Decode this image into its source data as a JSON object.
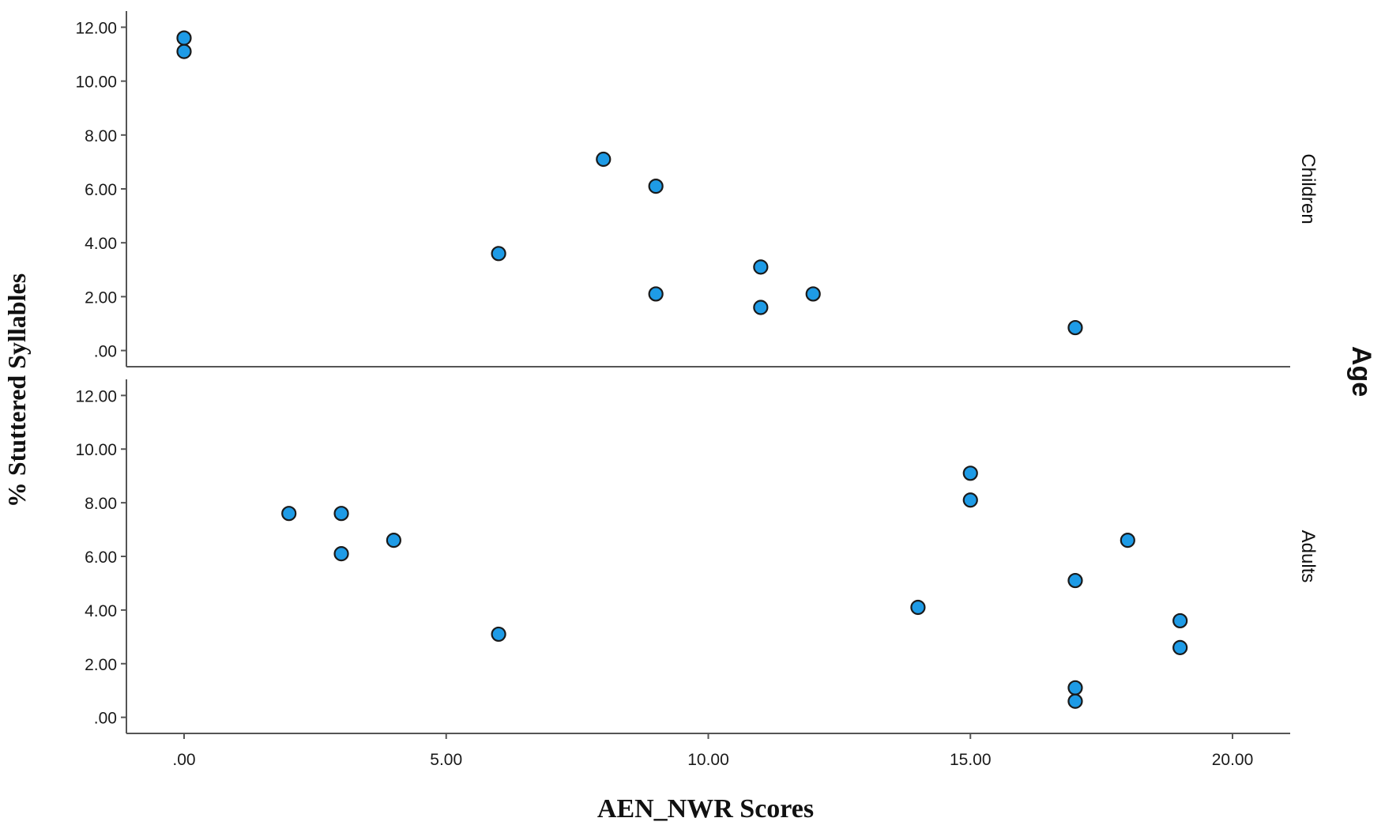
{
  "chart_data": {
    "type": "scatter",
    "xlabel": "AEN_NWR Scores",
    "ylabel": "% Stuttered Syllables",
    "facet_label": "Age",
    "xlim": [
      -1.1,
      21.1
    ],
    "ylim": [
      -0.6,
      12.6
    ],
    "x_ticks": [
      0,
      5,
      10,
      15,
      20
    ],
    "x_tick_labels": [
      ".00",
      "5.00",
      "10.00",
      "15.00",
      "20.00"
    ],
    "y_ticks": [
      0,
      2,
      4,
      6,
      8,
      10,
      12
    ],
    "y_tick_labels": [
      ".00",
      "2.00",
      "4.00",
      "6.00",
      "8.00",
      "10.00",
      "12.00"
    ],
    "panels": [
      {
        "name": "Children",
        "points": [
          {
            "x": 0,
            "y": 11.6
          },
          {
            "x": 0,
            "y": 11.1
          },
          {
            "x": 6,
            "y": 3.6
          },
          {
            "x": 8,
            "y": 7.1
          },
          {
            "x": 9,
            "y": 6.1
          },
          {
            "x": 9,
            "y": 2.1
          },
          {
            "x": 11,
            "y": 3.1
          },
          {
            "x": 11,
            "y": 1.6
          },
          {
            "x": 12,
            "y": 2.1
          },
          {
            "x": 17,
            "y": 0.85
          }
        ]
      },
      {
        "name": "Adults",
        "points": [
          {
            "x": 2,
            "y": 7.6
          },
          {
            "x": 3,
            "y": 7.6
          },
          {
            "x": 3,
            "y": 6.1
          },
          {
            "x": 4,
            "y": 6.6
          },
          {
            "x": 6,
            "y": 3.1
          },
          {
            "x": 14,
            "y": 4.1
          },
          {
            "x": 15,
            "y": 9.1
          },
          {
            "x": 15,
            "y": 8.1
          },
          {
            "x": 17,
            "y": 5.1
          },
          {
            "x": 17,
            "y": 1.1
          },
          {
            "x": 17,
            "y": 0.6
          },
          {
            "x": 18,
            "y": 6.6
          },
          {
            "x": 19,
            "y": 3.6
          },
          {
            "x": 19,
            "y": 2.6
          }
        ]
      }
    ],
    "grid": false,
    "marker_color": "#1e9be6",
    "marker_edge_color": "#1a1a1a"
  }
}
